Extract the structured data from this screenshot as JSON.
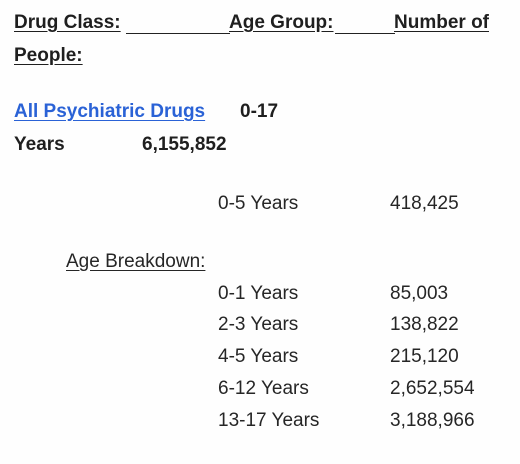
{
  "header": {
    "drug_class": "Drug Class:",
    "age_group": "Age Group:",
    "number_of": "Number of",
    "people": "People:"
  },
  "summary": {
    "drug_link": "All Psychiatric Drugs",
    "age_range": "0-17",
    "years_label": "Years",
    "total": "6,155,852"
  },
  "subgroup": {
    "label": "0-5 Years",
    "value": "418,425"
  },
  "breakdown": {
    "title": "Age Breakdown:",
    "rows": [
      {
        "age": "0-1 Years",
        "count": "85,003"
      },
      {
        "age": "2-3 Years",
        "count": "138,822"
      },
      {
        "age": "4-5 Years",
        "count": "215,120"
      },
      {
        "age": "6-12 Years",
        "count": "2,652,554"
      },
      {
        "age": "13-17 Years",
        "count": "3,188,966"
      }
    ]
  }
}
